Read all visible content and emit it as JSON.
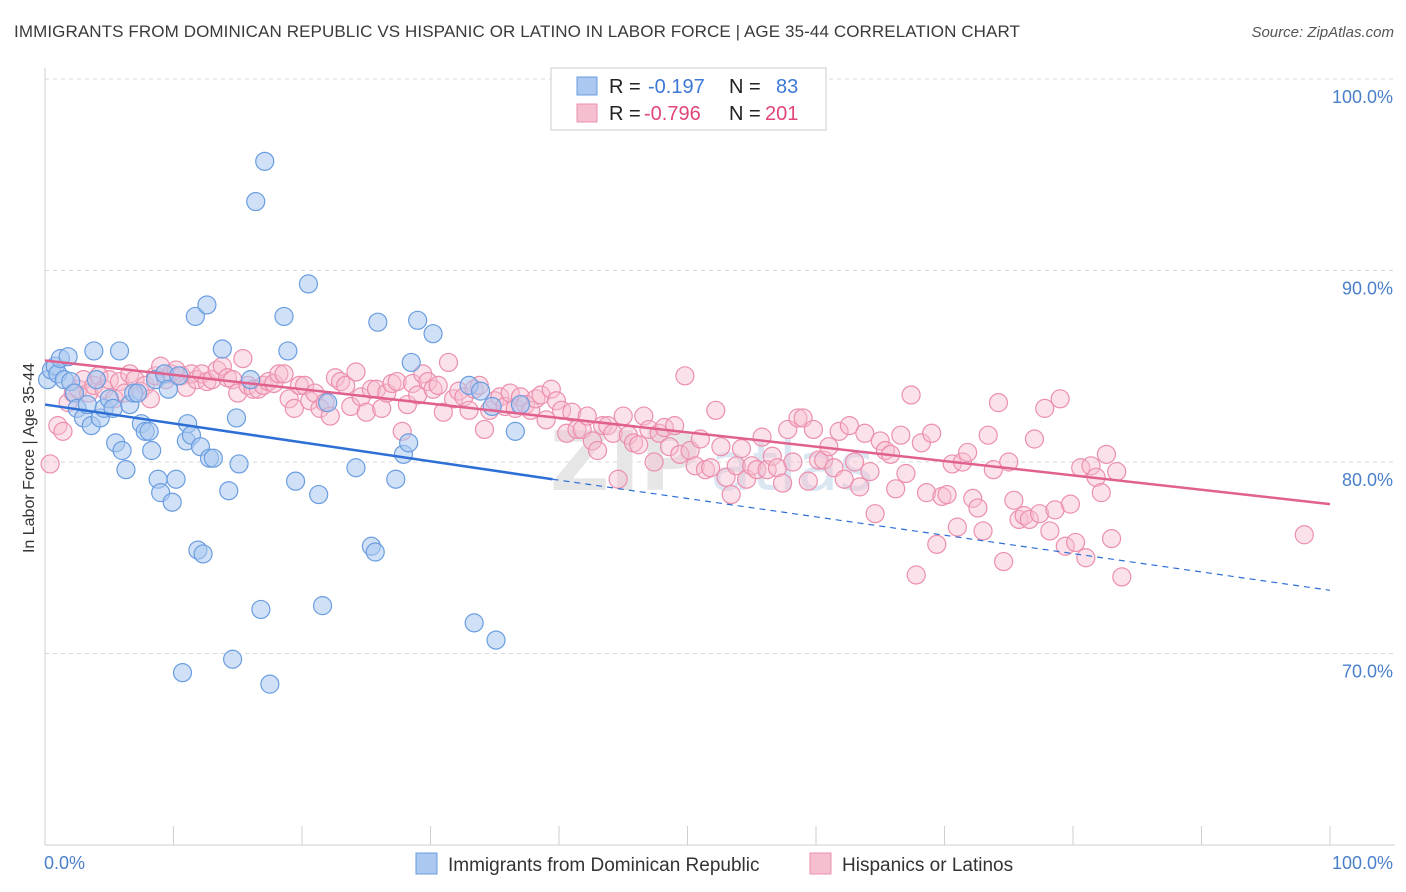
{
  "title": "IMMIGRANTS FROM DOMINICAN REPUBLIC VS HISPANIC OR LATINO IN LABOR FORCE | AGE 35-44 CORRELATION CHART",
  "source": "Source: ZipAtlas.com",
  "watermark": "ZIPatlas",
  "colors": {
    "blue_fill": "#aac8f0",
    "blue_stroke": "#6a9de0",
    "blue_line": "#2e6fd6",
    "pink_fill": "#f6bfd0",
    "pink_stroke": "#ec8fad",
    "pink_line": "#e0608e",
    "tick_label": "#4a7fc9",
    "grid": "#d8d8d8"
  },
  "legend": {
    "rows": [
      {
        "r_label": "R =",
        "r_value": "-0.197",
        "n_label": "N =",
        "n_value": "83"
      },
      {
        "r_label": "R =",
        "r_value": "-0.796",
        "n_label": "N =",
        "n_value": "201"
      }
    ]
  },
  "chart_data": {
    "type": "scatter",
    "title": "IMMIGRANTS FROM DOMINICAN REPUBLIC VS HISPANIC OR LATINO IN LABOR FORCE | AGE 35-44 CORRELATION CHART",
    "xlabel": "",
    "ylabel": "In Labor Force | Age 35-44",
    "xlim": [
      0,
      100
    ],
    "ylim": [
      60,
      102
    ],
    "y_ticks": [
      70,
      80,
      90,
      100
    ],
    "y_tick_labels": [
      "70.0%",
      "80.0%",
      "90.0%",
      "100.0%"
    ],
    "x_tick_labels": [
      "0.0%",
      "100.0%"
    ],
    "grid": true,
    "legend_position": "top-center",
    "series": [
      {
        "name": "Immigrants from Dominican Republic",
        "color": "#aac8f0",
        "r": -0.197,
        "n": 83,
        "trend": {
          "x": [
            0,
            39.5
          ],
          "y": [
            83.0,
            79.1
          ],
          "dashed_extension_to": [
            100,
            73.3
          ]
        },
        "points": [
          [
            0.2,
            84.3
          ],
          [
            0.5,
            84.8
          ],
          [
            0.8,
            85.0
          ],
          [
            1.0,
            84.6
          ],
          [
            1.2,
            85.4
          ],
          [
            1.5,
            84.3
          ],
          [
            1.8,
            85.5
          ],
          [
            2.0,
            84.2
          ],
          [
            2.3,
            83.6
          ],
          [
            2.5,
            82.8
          ],
          [
            3.0,
            82.3
          ],
          [
            3.3,
            83.0
          ],
          [
            3.6,
            81.9
          ],
          [
            3.8,
            85.8
          ],
          [
            4.0,
            84.3
          ],
          [
            4.3,
            82.3
          ],
          [
            4.6,
            82.8
          ],
          [
            5.0,
            83.3
          ],
          [
            5.3,
            82.8
          ],
          [
            5.5,
            81.0
          ],
          [
            5.8,
            85.8
          ],
          [
            6.0,
            80.6
          ],
          [
            6.3,
            79.6
          ],
          [
            6.6,
            83.0
          ],
          [
            6.9,
            83.6
          ],
          [
            7.2,
            83.6
          ],
          [
            7.5,
            82.0
          ],
          [
            7.8,
            81.6
          ],
          [
            8.1,
            81.6
          ],
          [
            8.3,
            80.6
          ],
          [
            8.6,
            84.3
          ],
          [
            8.8,
            79.1
          ],
          [
            9.0,
            78.4
          ],
          [
            9.3,
            84.6
          ],
          [
            9.6,
            83.8
          ],
          [
            9.9,
            77.9
          ],
          [
            10.2,
            79.1
          ],
          [
            10.4,
            84.5
          ],
          [
            10.7,
            69.0
          ],
          [
            11.0,
            81.1
          ],
          [
            11.1,
            82.0
          ],
          [
            11.4,
            81.4
          ],
          [
            11.7,
            87.6
          ],
          [
            11.9,
            75.4
          ],
          [
            12.1,
            80.8
          ],
          [
            12.3,
            75.2
          ],
          [
            12.6,
            88.2
          ],
          [
            12.8,
            80.2
          ],
          [
            13.1,
            80.2
          ],
          [
            13.8,
            85.9
          ],
          [
            14.3,
            78.5
          ],
          [
            14.6,
            69.7
          ],
          [
            14.9,
            82.3
          ],
          [
            15.1,
            79.9
          ],
          [
            16.0,
            84.3
          ],
          [
            16.4,
            93.6
          ],
          [
            16.8,
            72.3
          ],
          [
            17.1,
            95.7
          ],
          [
            17.5,
            68.4
          ],
          [
            18.6,
            87.6
          ],
          [
            18.9,
            85.8
          ],
          [
            19.5,
            79.0
          ],
          [
            20.5,
            89.3
          ],
          [
            21.3,
            78.3
          ],
          [
            21.6,
            72.5
          ],
          [
            22.0,
            83.1
          ],
          [
            24.2,
            79.7
          ],
          [
            25.4,
            75.6
          ],
          [
            25.7,
            75.3
          ],
          [
            25.9,
            87.3
          ],
          [
            27.3,
            79.1
          ],
          [
            27.9,
            80.4
          ],
          [
            28.3,
            81.0
          ],
          [
            28.5,
            85.2
          ],
          [
            29.0,
            87.4
          ],
          [
            30.2,
            86.7
          ],
          [
            33.0,
            84.0
          ],
          [
            33.4,
            71.6
          ],
          [
            33.9,
            83.7
          ],
          [
            35.1,
            70.7
          ],
          [
            36.6,
            81.6
          ],
          [
            37.0,
            83.0
          ],
          [
            34.8,
            82.9
          ]
        ]
      },
      {
        "name": "Hispanics or Latinos",
        "color": "#f6bfd0",
        "r": -0.796,
        "n": 201,
        "trend": {
          "x": [
            0,
            100
          ],
          "y": [
            85.3,
            77.8
          ]
        },
        "points": [
          [
            0.4,
            79.9
          ],
          [
            1.0,
            81.9
          ],
          [
            1.4,
            81.6
          ],
          [
            1.8,
            83.1
          ],
          [
            2.2,
            83.6
          ],
          [
            2.6,
            83.8
          ],
          [
            3.0,
            84.3
          ],
          [
            3.4,
            83.6
          ],
          [
            3.8,
            84.0
          ],
          [
            4.2,
            84.5
          ],
          [
            4.6,
            83.8
          ],
          [
            5.0,
            84.3
          ],
          [
            5.4,
            83.3
          ],
          [
            5.8,
            84.2
          ],
          [
            6.2,
            83.6
          ],
          [
            6.6,
            84.6
          ],
          [
            7.0,
            84.3
          ],
          [
            7.4,
            83.7
          ],
          [
            7.8,
            84.0
          ],
          [
            8.2,
            83.3
          ],
          [
            8.6,
            84.5
          ],
          [
            9.0,
            85.0
          ],
          [
            9.4,
            84.3
          ],
          [
            9.8,
            84.6
          ],
          [
            10.2,
            84.8
          ],
          [
            10.6,
            84.5
          ],
          [
            11.0,
            83.9
          ],
          [
            11.4,
            84.6
          ],
          [
            11.8,
            84.3
          ],
          [
            12.2,
            84.6
          ],
          [
            12.6,
            84.2
          ],
          [
            13.0,
            84.3
          ],
          [
            13.4,
            84.8
          ],
          [
            13.8,
            85.0
          ],
          [
            14.2,
            84.4
          ],
          [
            14.6,
            84.3
          ],
          [
            15.0,
            83.6
          ],
          [
            15.4,
            85.4
          ],
          [
            15.8,
            84.0
          ],
          [
            16.2,
            83.8
          ],
          [
            16.6,
            83.8
          ],
          [
            17.0,
            84.0
          ],
          [
            17.4,
            84.2
          ],
          [
            17.8,
            84.1
          ],
          [
            18.2,
            84.6
          ],
          [
            18.6,
            84.6
          ],
          [
            19.0,
            83.3
          ],
          [
            19.4,
            82.8
          ],
          [
            19.8,
            84.0
          ],
          [
            20.2,
            84.0
          ],
          [
            20.6,
            83.2
          ],
          [
            21.0,
            83.6
          ],
          [
            21.4,
            82.8
          ],
          [
            21.8,
            83.1
          ],
          [
            22.2,
            82.4
          ],
          [
            22.6,
            84.4
          ],
          [
            23.0,
            84.2
          ],
          [
            23.4,
            84.0
          ],
          [
            23.8,
            82.9
          ],
          [
            24.2,
            84.7
          ],
          [
            24.6,
            83.4
          ],
          [
            25.0,
            82.6
          ],
          [
            25.4,
            83.8
          ],
          [
            25.8,
            83.8
          ],
          [
            26.2,
            82.8
          ],
          [
            26.6,
            83.6
          ],
          [
            27.0,
            84.1
          ],
          [
            27.4,
            84.2
          ],
          [
            27.8,
            81.6
          ],
          [
            28.2,
            83.0
          ],
          [
            28.6,
            84.1
          ],
          [
            29.0,
            83.5
          ],
          [
            29.4,
            84.6
          ],
          [
            29.8,
            84.2
          ],
          [
            30.2,
            83.8
          ],
          [
            30.6,
            84.0
          ],
          [
            31.0,
            82.6
          ],
          [
            31.4,
            85.2
          ],
          [
            31.8,
            83.3
          ],
          [
            32.2,
            83.7
          ],
          [
            32.6,
            83.4
          ],
          [
            33.0,
            82.7
          ],
          [
            33.4,
            83.8
          ],
          [
            33.8,
            84.0
          ],
          [
            34.2,
            81.7
          ],
          [
            34.6,
            82.7
          ],
          [
            35.0,
            83.2
          ],
          [
            35.4,
            83.4
          ],
          [
            35.8,
            82.9
          ],
          [
            36.2,
            83.6
          ],
          [
            36.6,
            82.8
          ],
          [
            37.0,
            83.4
          ],
          [
            37.4,
            83.0
          ],
          [
            37.8,
            82.7
          ],
          [
            38.2,
            83.3
          ],
          [
            38.6,
            83.5
          ],
          [
            39.0,
            82.2
          ],
          [
            39.4,
            83.8
          ],
          [
            39.8,
            83.2
          ],
          [
            40.2,
            82.7
          ],
          [
            40.6,
            81.5
          ],
          [
            41.0,
            82.6
          ],
          [
            41.4,
            81.7
          ],
          [
            41.8,
            81.7
          ],
          [
            42.2,
            82.4
          ],
          [
            42.6,
            81.1
          ],
          [
            43.0,
            80.6
          ],
          [
            43.4,
            81.9
          ],
          [
            43.8,
            81.9
          ],
          [
            44.2,
            81.5
          ],
          [
            44.6,
            79.1
          ],
          [
            45.0,
            82.4
          ],
          [
            45.4,
            81.4
          ],
          [
            45.8,
            81.0
          ],
          [
            46.2,
            80.9
          ],
          [
            46.6,
            82.4
          ],
          [
            47.0,
            81.7
          ],
          [
            47.4,
            80.0
          ],
          [
            47.8,
            81.5
          ],
          [
            48.2,
            81.8
          ],
          [
            48.6,
            80.8
          ],
          [
            49.0,
            81.9
          ],
          [
            49.4,
            80.4
          ],
          [
            49.8,
            84.5
          ],
          [
            50.2,
            80.6
          ],
          [
            50.6,
            79.8
          ],
          [
            51.0,
            81.2
          ],
          [
            51.4,
            79.6
          ],
          [
            51.8,
            79.7
          ],
          [
            52.2,
            82.7
          ],
          [
            52.6,
            80.8
          ],
          [
            53.0,
            79.2
          ],
          [
            53.4,
            78.3
          ],
          [
            53.8,
            79.8
          ],
          [
            54.2,
            80.7
          ],
          [
            54.6,
            79.1
          ],
          [
            55.0,
            79.8
          ],
          [
            55.4,
            79.6
          ],
          [
            55.8,
            81.3
          ],
          [
            56.2,
            79.6
          ],
          [
            56.6,
            80.3
          ],
          [
            57.0,
            79.7
          ],
          [
            57.4,
            78.9
          ],
          [
            57.8,
            81.7
          ],
          [
            58.2,
            80.0
          ],
          [
            58.6,
            82.3
          ],
          [
            59.0,
            82.3
          ],
          [
            59.4,
            79.0
          ],
          [
            59.8,
            81.7
          ],
          [
            60.2,
            80.1
          ],
          [
            60.6,
            80.1
          ],
          [
            61.0,
            80.8
          ],
          [
            61.4,
            79.7
          ],
          [
            61.8,
            81.6
          ],
          [
            62.2,
            79.1
          ],
          [
            62.6,
            81.9
          ],
          [
            63.0,
            80.0
          ],
          [
            63.4,
            78.7
          ],
          [
            63.8,
            81.5
          ],
          [
            64.2,
            79.5
          ],
          [
            64.6,
            77.3
          ],
          [
            65.0,
            81.1
          ],
          [
            65.4,
            80.6
          ],
          [
            65.8,
            80.4
          ],
          [
            66.2,
            78.6
          ],
          [
            66.6,
            81.4
          ],
          [
            67.0,
            79.4
          ],
          [
            67.4,
            83.5
          ],
          [
            67.8,
            74.1
          ],
          [
            68.2,
            81.0
          ],
          [
            68.6,
            78.4
          ],
          [
            69.0,
            81.5
          ],
          [
            69.4,
            75.7
          ],
          [
            69.8,
            78.2
          ],
          [
            70.2,
            78.3
          ],
          [
            70.6,
            79.9
          ],
          [
            71.0,
            76.6
          ],
          [
            71.4,
            80.0
          ],
          [
            71.8,
            80.5
          ],
          [
            72.2,
            78.1
          ],
          [
            72.6,
            77.6
          ],
          [
            73.0,
            76.4
          ],
          [
            73.4,
            81.4
          ],
          [
            73.8,
            79.6
          ],
          [
            74.2,
            83.1
          ],
          [
            74.6,
            74.8
          ],
          [
            75.0,
            80.0
          ],
          [
            75.4,
            78.0
          ],
          [
            75.8,
            77.0
          ],
          [
            76.2,
            77.2
          ],
          [
            76.6,
            77.0
          ],
          [
            77.0,
            81.2
          ],
          [
            77.4,
            77.3
          ],
          [
            77.8,
            82.8
          ],
          [
            78.2,
            76.4
          ],
          [
            78.6,
            77.5
          ],
          [
            79.0,
            83.3
          ],
          [
            79.4,
            75.6
          ],
          [
            79.8,
            77.8
          ],
          [
            80.2,
            75.8
          ],
          [
            80.6,
            79.7
          ],
          [
            81.0,
            75.0
          ],
          [
            81.4,
            79.8
          ],
          [
            81.8,
            79.2
          ],
          [
            82.2,
            78.4
          ],
          [
            82.6,
            80.4
          ],
          [
            83.0,
            76.0
          ],
          [
            83.4,
            79.5
          ],
          [
            83.8,
            74.0
          ],
          [
            98.0,
            76.2
          ]
        ]
      }
    ]
  },
  "bottom_legend": [
    {
      "label": "Immigrants from Dominican Republic"
    },
    {
      "label": "Hispanics or Latinos"
    }
  ]
}
